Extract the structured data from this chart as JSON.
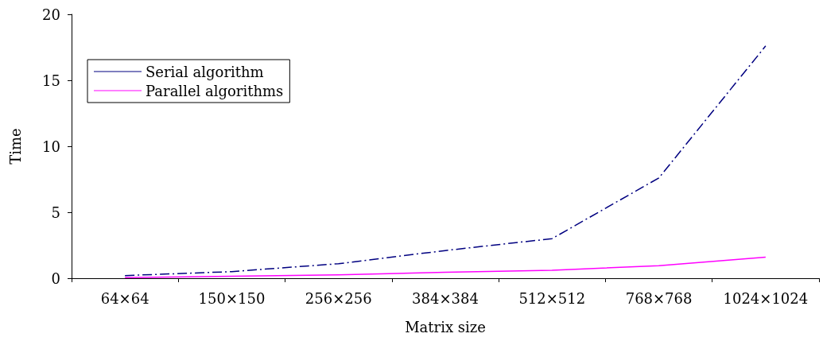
{
  "chart_data": {
    "type": "line",
    "xlabel": "Matrix size",
    "ylabel": "Time",
    "categories": [
      "64×64",
      "150×150",
      "256×256",
      "384×384",
      "512×512",
      "768×768",
      "1024×1024"
    ],
    "series": [
      {
        "name": "Serial algorithm",
        "color": "#000080",
        "line_style": "dashdot",
        "values": [
          0.2,
          0.5,
          1.1,
          2.1,
          3.0,
          7.6,
          17.6
        ]
      },
      {
        "name": "Parallel algorithms",
        "color": "#ff00ff",
        "line_style": "solid",
        "values": [
          0.05,
          0.15,
          0.25,
          0.45,
          0.6,
          0.95,
          1.6
        ]
      }
    ],
    "ylim": [
      0,
      20
    ],
    "yticks": [
      0,
      5,
      10,
      15,
      20
    ],
    "grid": false,
    "legend": "top left",
    "marker": "none"
  }
}
